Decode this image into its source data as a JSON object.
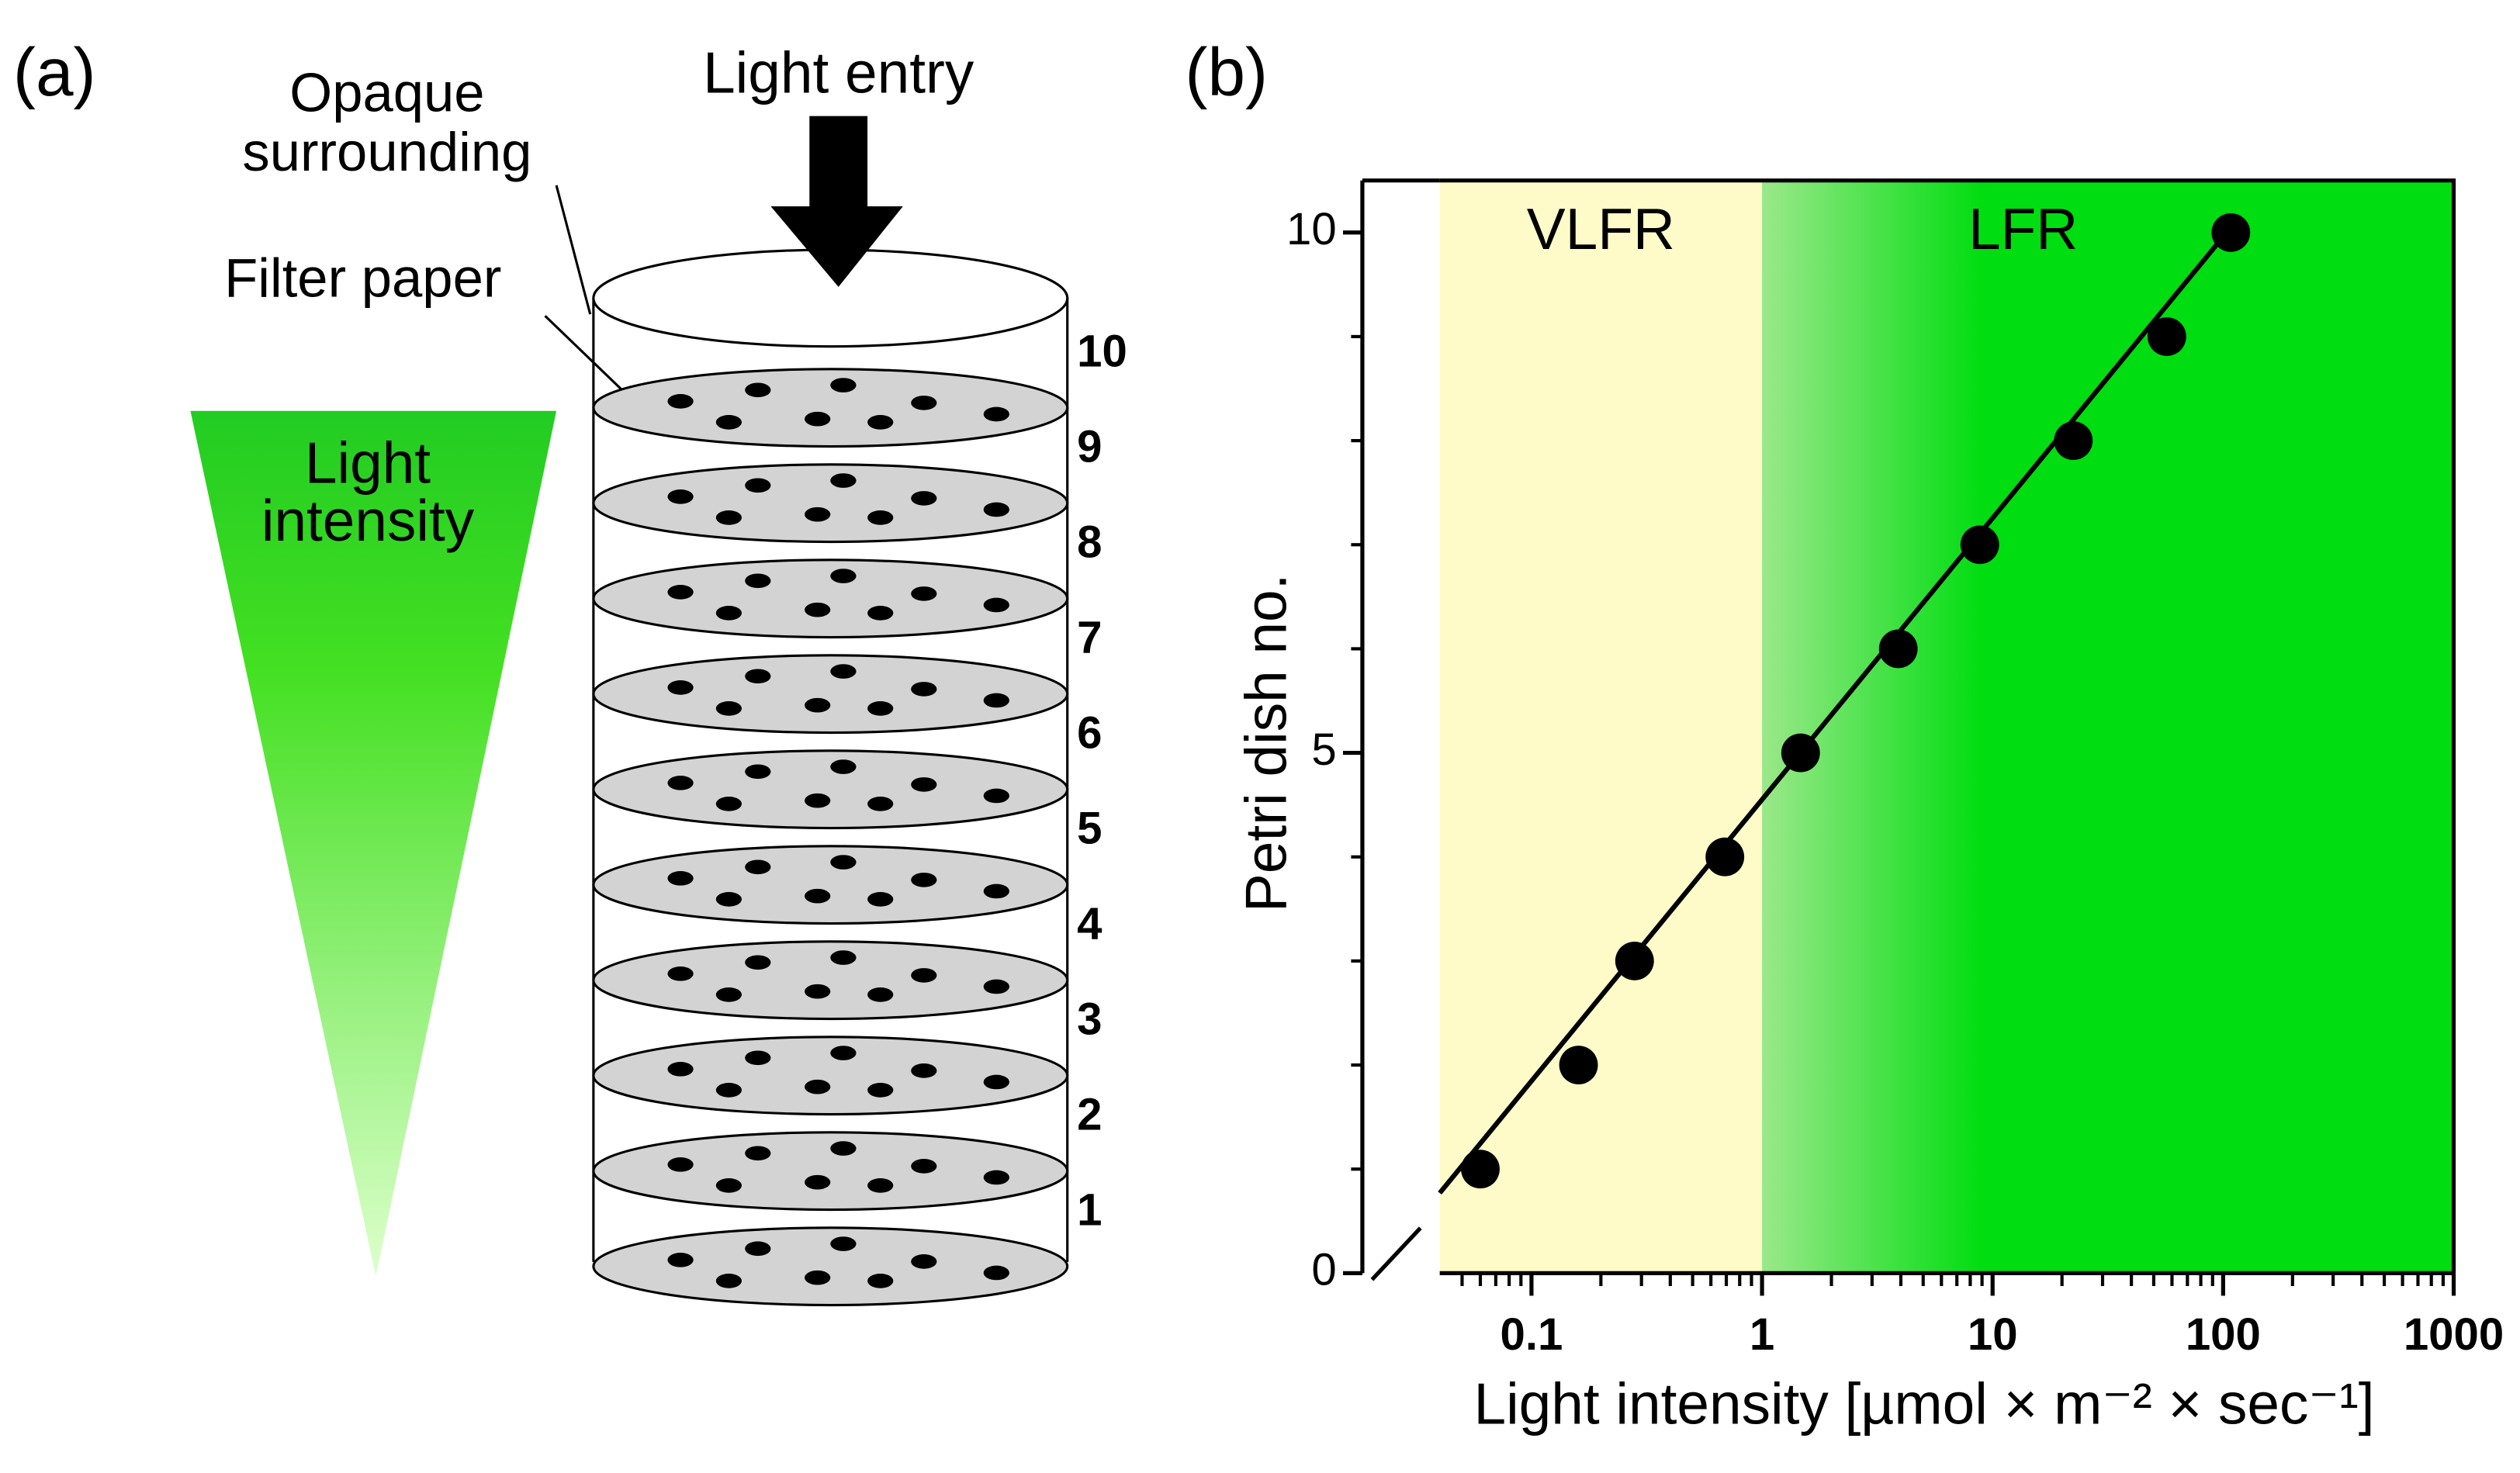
{
  "panel_a": {
    "label": "(a)",
    "light_entry": "Light entry",
    "opaque": [
      "Opaque",
      "surrounding"
    ],
    "filter_paper": "Filter paper",
    "light_intensity": [
      "Light",
      "intensity"
    ],
    "dishes": [
      10,
      9,
      8,
      7,
      6,
      5,
      4,
      3,
      2,
      1
    ]
  },
  "chart_data": {
    "type": "scatter",
    "panel_label": "(b)",
    "xlabel": "Light intensity [µmol × m⁻² × sec⁻¹]",
    "ylabel": "Petri dish no.",
    "log_x": true,
    "xlim": [
      0.04,
      1000
    ],
    "ylim": [
      0,
      10.5
    ],
    "xticks": [
      0.1,
      1,
      10,
      100,
      1000
    ],
    "yticks": [
      0,
      5,
      10
    ],
    "yminorticks": [
      1,
      2,
      3,
      4,
      6,
      7,
      8,
      9
    ],
    "regions": [
      {
        "label": "VLFR",
        "from": 0.04,
        "to": 1,
        "colors": [
          "#fffbc8",
          "#fffbc8"
        ]
      },
      {
        "label": "LFR",
        "from": 1,
        "to": 1000,
        "colors": [
          "#9be88a",
          "#00dd10"
        ]
      }
    ],
    "series": [
      {
        "color": "#000000",
        "x": [
          0.06,
          0.16,
          0.28,
          0.69,
          1.47,
          3.9,
          8.8,
          22.4,
          57,
          108
        ],
        "values": [
          1,
          2,
          3,
          4,
          5,
          6,
          7,
          8,
          9,
          10
        ]
      }
    ],
    "fit": {
      "color": "#000000",
      "x": [
        0.04,
        108
      ],
      "values": [
        0.77,
        10.05
      ]
    }
  }
}
